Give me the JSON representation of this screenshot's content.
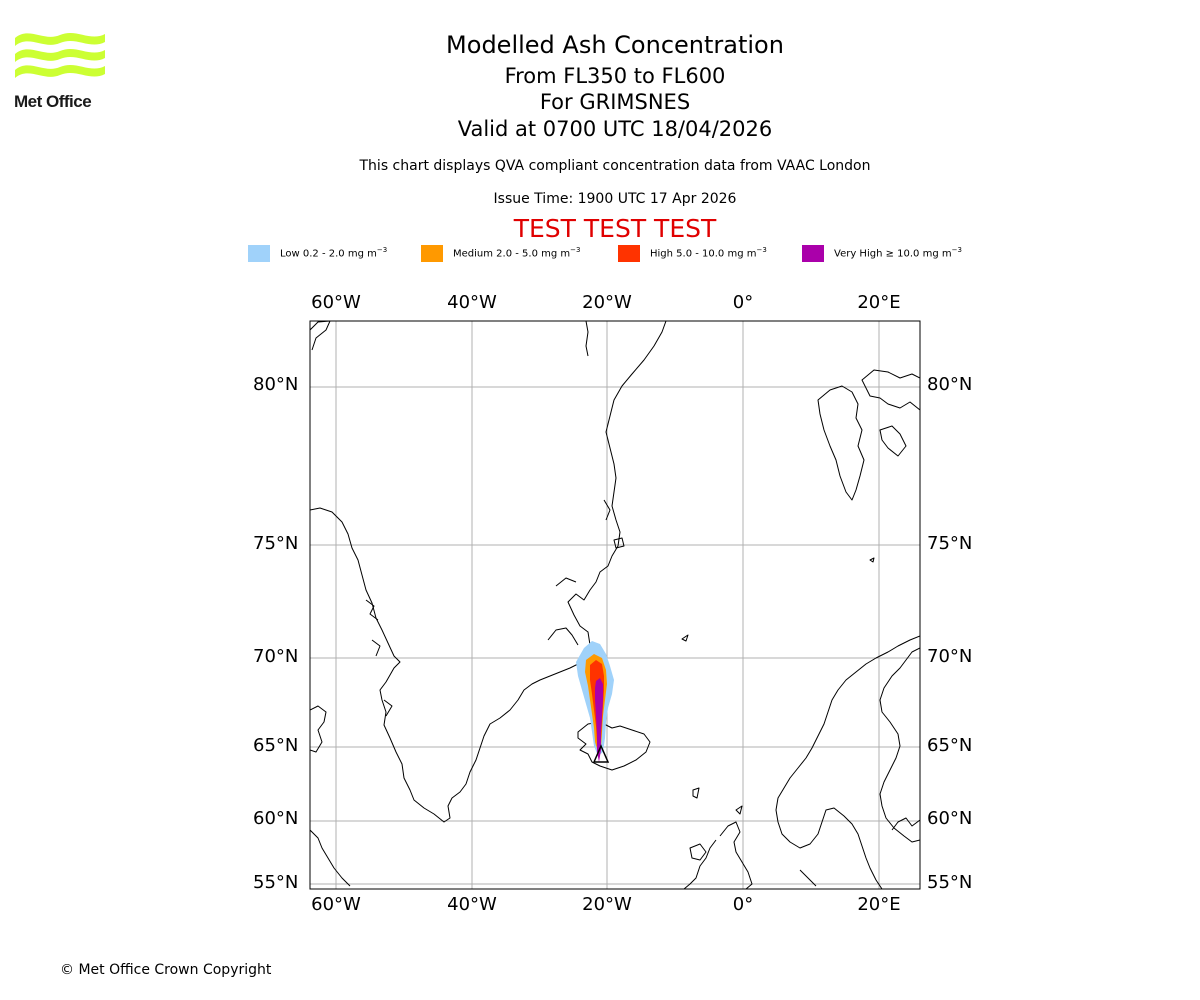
{
  "logo": {
    "text": "Met Office",
    "color": "#ccff33"
  },
  "header": {
    "title": "Modelled Ash Concentration",
    "levels": "From FL350 to FL600",
    "volcano": "For GRIMSNES",
    "valid": "Valid at 0700 UTC 18/04/2026",
    "description": "This chart displays QVA compliant concentration data from VAAC London",
    "issue_time": "Issue Time: 1900 UTC 17 Apr 2026",
    "test_banner": "TEST TEST TEST"
  },
  "legend": [
    {
      "label": "Low 0.2 - 2.0 mg m",
      "exp": "−3",
      "color": "#a0d2fa"
    },
    {
      "label": "Medium 2.0 - 5.0 mg m",
      "exp": "−3",
      "color": "#ff9900"
    },
    {
      "label": "High 5.0 - 10.0 mg m",
      "exp": "−3",
      "color": "#ff3300"
    },
    {
      "label": "Very High  ≥  10.0 mg m",
      "exp": "−3",
      "color": "#aa00aa"
    }
  ],
  "map": {
    "lon_labels": [
      "60°W",
      "40°W",
      "20°W",
      "0°",
      "20°E"
    ],
    "lat_labels": [
      "80°N",
      "75°N",
      "70°N",
      "65°N",
      "60°N",
      "55°N"
    ]
  },
  "footer": {
    "copyright": "© Met Office Crown Copyright"
  }
}
